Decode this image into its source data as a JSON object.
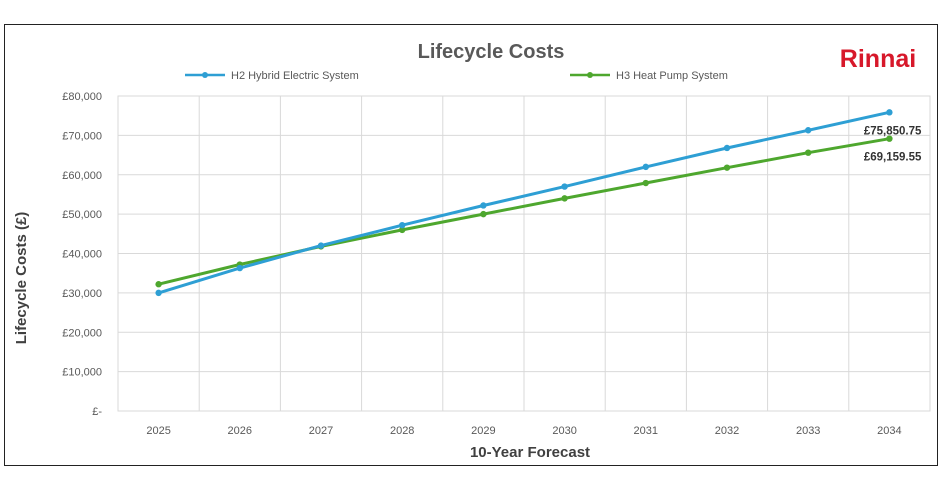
{
  "brand": "Rinnai",
  "colors": {
    "series1": "#2e9fd4",
    "series2": "#4ea72e",
    "brand": "#d7182a",
    "grid": "#d9d9d9"
  },
  "chart_data": {
    "type": "line",
    "title": "Lifecycle Costs",
    "xlabel": "10-Year Forecast",
    "ylabel": "Lifecycle Costs (£)",
    "x": [
      "2025",
      "2026",
      "2027",
      "2028",
      "2029",
      "2030",
      "2031",
      "2032",
      "2033",
      "2034"
    ],
    "ylim": [
      0,
      80000
    ],
    "ytick_labels": [
      "£-",
      "£10,000",
      "£20,000",
      "£30,000",
      "£40,000",
      "£50,000",
      "£60,000",
      "£70,000",
      "£80,000"
    ],
    "grid": true,
    "legend_position": "top",
    "series": [
      {
        "name": "H2 Hybrid Electric System",
        "values": [
          30000,
          36300,
          42000,
          47200,
          52200,
          57000,
          62000,
          66800,
          71300,
          75850.75
        ],
        "end_label": "£75,850.75"
      },
      {
        "name": "H3 Heat Pump System",
        "values": [
          32200,
          37200,
          41800,
          46000,
          50000,
          54000,
          57900,
          61800,
          65600,
          69159.55
        ],
        "end_label": "£69,159.55"
      }
    ]
  }
}
